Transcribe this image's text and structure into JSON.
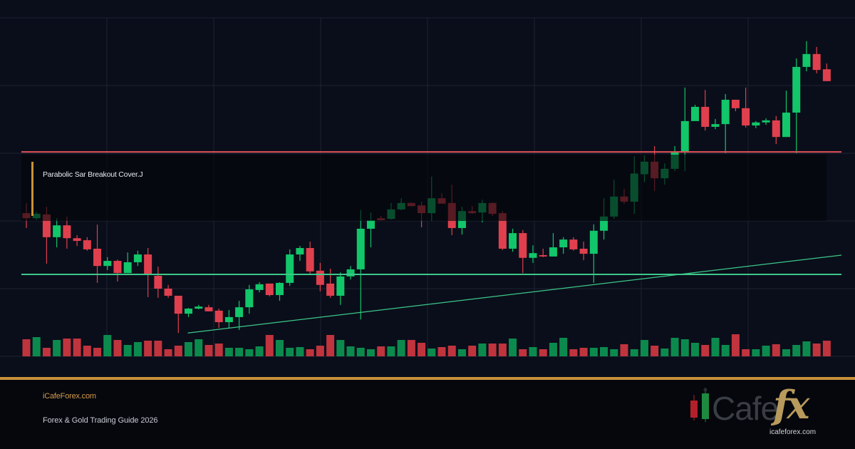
{
  "overlay": {
    "label": "Parabolic Sar Breakout Cover.J"
  },
  "footer": {
    "site_link": "iCafeForex.com",
    "guide_title": "Forex & Gold Trading Guide 2026",
    "logo_word": "Cafe",
    "logo_fx": "fx",
    "logo_url": "icafeforex.com"
  },
  "colors": {
    "background": "#0a0e1a",
    "grid": "#1e2333",
    "bull": "#12c66a",
    "bear": "#e0404e",
    "bull_volume": "#0c8a4e",
    "bear_volume": "#c0343e",
    "resistance": "#e05058",
    "support": "#3cc88a",
    "trendline": "#3cc88a",
    "accent_gold": "#c8923a"
  },
  "chart_data": {
    "type": "candlestick",
    "title": "",
    "xlabel": "",
    "ylabel": "",
    "grid": true,
    "axis_labels_visible": false,
    "note": "Prices in relative units derived from pixels (0 at volume baseline, 100 at top gridline); no axis tick labels are shown.",
    "ylim": [
      0,
      100
    ],
    "horizontal_lines": [
      {
        "name": "resistance",
        "price": 60.4,
        "color": "#e05058"
      },
      {
        "name": "support",
        "price": 24.2,
        "color": "#3cc88a"
      }
    ],
    "trendline": {
      "from": {
        "index": 16,
        "price": 6.9
      },
      "to": {
        "index": 80,
        "price": 29.9
      }
    },
    "annotation": {
      "text": "Parabolic Sar Breakout Cover.J",
      "box_from_index": 1,
      "box_to_index": 79,
      "box_price_top": 60.0,
      "box_price_bottom": 40.0
    },
    "candles": [
      {
        "o": 42.3,
        "c": 40.8,
        "h": 45.3,
        "l": 37.9,
        "v": 24
      },
      {
        "o": 40.8,
        "c": 42.1,
        "h": 42.7,
        "l": 40.3,
        "v": 27
      },
      {
        "o": 41.9,
        "c": 35.2,
        "h": 44.2,
        "l": 27.4,
        "v": 12
      },
      {
        "o": 35.2,
        "c": 38.7,
        "h": 40.8,
        "l": 32.2,
        "v": 23
      },
      {
        "o": 38.7,
        "c": 34.9,
        "h": 41.3,
        "l": 31.8,
        "v": 25
      },
      {
        "o": 34.9,
        "c": 34.1,
        "h": 35.8,
        "l": 32.6,
        "v": 25
      },
      {
        "o": 34.3,
        "c": 31.6,
        "h": 35.2,
        "l": 31.2,
        "v": 15
      },
      {
        "o": 31.8,
        "c": 26.7,
        "h": 38.9,
        "l": 21.7,
        "v": 12
      },
      {
        "o": 26.7,
        "c": 28.2,
        "h": 29.3,
        "l": 25.5,
        "v": 30
      },
      {
        "o": 28.2,
        "c": 24.6,
        "h": 28.6,
        "l": 22.1,
        "v": 23
      },
      {
        "o": 24.6,
        "c": 27.8,
        "h": 30.7,
        "l": 24.6,
        "v": 16
      },
      {
        "o": 27.8,
        "c": 30.1,
        "h": 31.2,
        "l": 26.7,
        "v": 20
      },
      {
        "o": 30.1,
        "c": 24.2,
        "h": 32.0,
        "l": 17.5,
        "v": 22
      },
      {
        "o": 23.8,
        "c": 20.0,
        "h": 26.5,
        "l": 17.3,
        "v": 22
      },
      {
        "o": 20.0,
        "c": 17.9,
        "h": 21.1,
        "l": 17.3,
        "v": 10
      },
      {
        "o": 17.9,
        "c": 12.6,
        "h": 17.9,
        "l": 6.9,
        "v": 15
      },
      {
        "o": 12.6,
        "c": 14.1,
        "h": 14.3,
        "l": 11.6,
        "v": 20
      },
      {
        "o": 14.1,
        "c": 14.7,
        "h": 15.2,
        "l": 13.9,
        "v": 24
      },
      {
        "o": 14.5,
        "c": 13.3,
        "h": 15.2,
        "l": 13.3,
        "v": 16
      },
      {
        "o": 13.5,
        "c": 10.1,
        "h": 14.1,
        "l": 8.4,
        "v": 18
      },
      {
        "o": 10.1,
        "c": 11.6,
        "h": 13.7,
        "l": 8.4,
        "v": 12
      },
      {
        "o": 11.6,
        "c": 14.5,
        "h": 16.4,
        "l": 7.8,
        "v": 12
      },
      {
        "o": 14.5,
        "c": 19.8,
        "h": 21.1,
        "l": 12.6,
        "v": 10
      },
      {
        "o": 19.6,
        "c": 21.3,
        "h": 21.9,
        "l": 18.9,
        "v": 14
      },
      {
        "o": 21.5,
        "c": 18.1,
        "h": 21.5,
        "l": 17.7,
        "v": 30
      },
      {
        "o": 18.1,
        "c": 21.7,
        "h": 21.9,
        "l": 16.4,
        "v": 23
      },
      {
        "o": 21.7,
        "c": 30.1,
        "h": 31.6,
        "l": 20.8,
        "v": 12
      },
      {
        "o": 30.1,
        "c": 32.0,
        "h": 32.6,
        "l": 28.2,
        "v": 13
      },
      {
        "o": 32.0,
        "c": 25.1,
        "h": 33.9,
        "l": 24.2,
        "v": 10
      },
      {
        "o": 25.3,
        "c": 21.1,
        "h": 27.6,
        "l": 19.2,
        "v": 15
      },
      {
        "o": 21.5,
        "c": 17.9,
        "h": 25.9,
        "l": 17.3,
        "v": 30
      },
      {
        "o": 17.9,
        "c": 23.6,
        "h": 24.8,
        "l": 15.2,
        "v": 23
      },
      {
        "o": 23.6,
        "c": 25.7,
        "h": 26.7,
        "l": 22.7,
        "v": 14
      },
      {
        "o": 25.7,
        "c": 37.7,
        "h": 43.2,
        "l": 10.9,
        "v": 12
      },
      {
        "o": 37.7,
        "c": 40.2,
        "h": 42.5,
        "l": 32.2,
        "v": 10
      },
      {
        "o": 40.8,
        "c": 40.2,
        "h": 41.5,
        "l": 40.2,
        "v": 14
      },
      {
        "o": 40.6,
        "c": 43.4,
        "h": 45.3,
        "l": 40.4,
        "v": 14
      },
      {
        "o": 43.4,
        "c": 45.3,
        "h": 46.7,
        "l": 43.2,
        "v": 23
      },
      {
        "o": 45.3,
        "c": 44.4,
        "h": 45.5,
        "l": 44.2,
        "v": 23
      },
      {
        "o": 44.6,
        "c": 42.3,
        "h": 45.7,
        "l": 38.1,
        "v": 19
      },
      {
        "o": 42.3,
        "c": 46.7,
        "h": 53.1,
        "l": 40.0,
        "v": 11
      },
      {
        "o": 46.7,
        "c": 45.1,
        "h": 48.2,
        "l": 45.3,
        "v": 13
      },
      {
        "o": 45.3,
        "c": 37.9,
        "h": 50.7,
        "l": 35.8,
        "v": 15
      },
      {
        "o": 37.9,
        "c": 42.9,
        "h": 44.2,
        "l": 36.0,
        "v": 10
      },
      {
        "o": 42.9,
        "c": 42.3,
        "h": 44.4,
        "l": 42.1,
        "v": 15
      },
      {
        "o": 42.5,
        "c": 45.3,
        "h": 46.3,
        "l": 39.6,
        "v": 18
      },
      {
        "o": 45.3,
        "c": 42.1,
        "h": 45.5,
        "l": 41.5,
        "v": 18
      },
      {
        "o": 42.3,
        "c": 31.8,
        "h": 42.9,
        "l": 31.4,
        "v": 18
      },
      {
        "o": 31.8,
        "c": 36.4,
        "h": 37.7,
        "l": 30.9,
        "v": 25
      },
      {
        "o": 36.4,
        "c": 29.1,
        "h": 37.3,
        "l": 24.6,
        "v": 10
      },
      {
        "o": 29.1,
        "c": 30.5,
        "h": 32.8,
        "l": 27.6,
        "v": 13
      },
      {
        "o": 29.9,
        "c": 29.5,
        "h": 31.8,
        "l": 29.3,
        "v": 10
      },
      {
        "o": 29.5,
        "c": 32.2,
        "h": 36.4,
        "l": 29.5,
        "v": 19
      },
      {
        "o": 32.2,
        "c": 34.5,
        "h": 35.2,
        "l": 30.3,
        "v": 26
      },
      {
        "o": 34.5,
        "c": 31.6,
        "h": 35.2,
        "l": 31.2,
        "v": 10
      },
      {
        "o": 31.8,
        "c": 30.3,
        "h": 33.9,
        "l": 28.4,
        "v": 12
      },
      {
        "o": 30.3,
        "c": 37.1,
        "h": 39.0,
        "l": 21.7,
        "v": 12
      },
      {
        "o": 37.1,
        "c": 41.3,
        "h": 46.7,
        "l": 34.5,
        "v": 13
      },
      {
        "o": 41.3,
        "c": 47.2,
        "h": 52.2,
        "l": 40.6,
        "v": 10
      },
      {
        "o": 47.2,
        "c": 45.7,
        "h": 49.5,
        "l": 45.0,
        "v": 17
      },
      {
        "o": 45.7,
        "c": 54.0,
        "h": 59.1,
        "l": 42.1,
        "v": 10
      },
      {
        "o": 53.8,
        "c": 57.5,
        "h": 59.4,
        "l": 51.4,
        "v": 23
      },
      {
        "o": 57.5,
        "c": 52.6,
        "h": 62.1,
        "l": 48.8,
        "v": 15
      },
      {
        "o": 52.6,
        "c": 55.4,
        "h": 57.0,
        "l": 50.7,
        "v": 11
      },
      {
        "o": 55.4,
        "c": 60.2,
        "h": 62.1,
        "l": 54.7,
        "v": 26
      },
      {
        "o": 60.2,
        "c": 69.5,
        "h": 79.4,
        "l": 54.7,
        "v": 24
      },
      {
        "o": 69.5,
        "c": 73.7,
        "h": 74.3,
        "l": 71.2,
        "v": 19
      },
      {
        "o": 73.7,
        "c": 67.8,
        "h": 78.7,
        "l": 66.7,
        "v": 16
      },
      {
        "o": 67.8,
        "c": 68.6,
        "h": 70.1,
        "l": 67.1,
        "v": 26
      },
      {
        "o": 68.6,
        "c": 75.8,
        "h": 77.5,
        "l": 60.0,
        "v": 16
      },
      {
        "o": 75.8,
        "c": 73.3,
        "h": 75.8,
        "l": 72.4,
        "v": 31
      },
      {
        "o": 73.3,
        "c": 68.2,
        "h": 79.4,
        "l": 67.6,
        "v": 10
      },
      {
        "o": 68.2,
        "c": 69.1,
        "h": 69.5,
        "l": 67.4,
        "v": 10
      },
      {
        "o": 69.1,
        "c": 69.7,
        "h": 70.3,
        "l": 68.4,
        "v": 15
      },
      {
        "o": 69.7,
        "c": 64.8,
        "h": 71.0,
        "l": 62.7,
        "v": 17
      },
      {
        "o": 64.8,
        "c": 72.0,
        "h": 78.5,
        "l": 64.8,
        "v": 10
      },
      {
        "o": 72.0,
        "c": 85.5,
        "h": 88.0,
        "l": 60.0,
        "v": 16
      },
      {
        "o": 85.5,
        "c": 89.3,
        "h": 93.1,
        "l": 84.2,
        "v": 21
      },
      {
        "o": 89.3,
        "c": 84.6,
        "h": 91.4,
        "l": 83.6,
        "v": 18
      },
      {
        "o": 84.8,
        "c": 81.3,
        "h": 86.5,
        "l": 81.3,
        "v": 22
      }
    ]
  }
}
